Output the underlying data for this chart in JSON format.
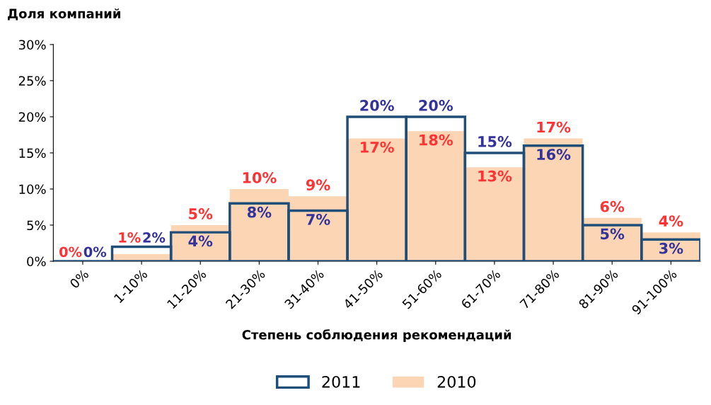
{
  "chart_data": {
    "type": "bar",
    "ylabel": "Доля компаний",
    "xlabel": "Степень соблюдения рекомендаций",
    "categories": [
      "0%",
      "1-10%",
      "11-20%",
      "21-30%",
      "31-40%",
      "41-50%",
      "51-60%",
      "61-70%",
      "71-80%",
      "81-90%",
      "91-100%"
    ],
    "series": [
      {
        "name": "2011",
        "color": "#1f4e79",
        "values": [
          0,
          2,
          4,
          8,
          7,
          20,
          20,
          15,
          16,
          5,
          3
        ],
        "value_labels": [
          "0%",
          "2%",
          "4%",
          "8%",
          "7%",
          "20%",
          "20%",
          "15%",
          "16%",
          "5%",
          "3%"
        ]
      },
      {
        "name": "2010",
        "color": "#fcd5b5",
        "values": [
          0,
          1,
          5,
          10,
          9,
          17,
          18,
          13,
          17,
          6,
          4
        ],
        "value_labels": [
          "0%",
          "1%",
          "5%",
          "10%",
          "9%",
          "17%",
          "18%",
          "13%",
          "17%",
          "6%",
          "4%"
        ]
      }
    ],
    "ylim": [
      0,
      30
    ],
    "yticks": [
      {
        "value": 0,
        "label": "0%"
      },
      {
        "value": 5,
        "label": "5%"
      },
      {
        "value": 10,
        "label": "10%"
      },
      {
        "value": 15,
        "label": "15%"
      },
      {
        "value": 20,
        "label": "20%"
      },
      {
        "value": 25,
        "label": "25%"
      },
      {
        "value": 30,
        "label": "30%"
      }
    ],
    "grid": false,
    "legend": "bottom"
  }
}
